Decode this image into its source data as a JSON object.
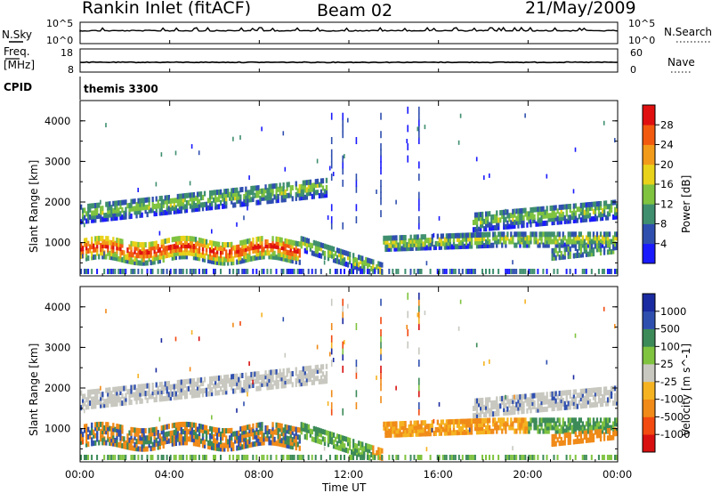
{
  "header": {
    "title": "Rankin Inlet (fitACF)",
    "beam": "Beam 02",
    "date": "21/May/2009"
  },
  "top_panels": {
    "nsky_label": "N.Sky",
    "nsky_ticks": [
      "10^5",
      "10^0"
    ],
    "nsearch_label": "N.Search",
    "nsearch_ticks": [
      "10^5",
      "10^0"
    ],
    "freq_label_1": "Freq.",
    "freq_label_2": "[MHz]",
    "freq_ticks": [
      "18",
      "8"
    ],
    "nave_label": "Nave",
    "nave_ticks": [
      "60",
      "0"
    ],
    "cpid_label": "CPID",
    "cpid_value": "themis 3300"
  },
  "xaxis": {
    "label": "Time UT",
    "ticks": [
      "00:00",
      "04:00",
      "08:00",
      "12:00",
      "16:00",
      "20:00",
      "00:00"
    ]
  },
  "colors": {
    "power": [
      "#1a1aff",
      "#2f4faf",
      "#3f8f6f",
      "#7fc33f",
      "#e8d21a",
      "#f29a1a",
      "#f25a10",
      "#e01010"
    ],
    "velocity": [
      "#d81010",
      "#f24a10",
      "#f08a18",
      "#f5b321",
      "#c8c8c0",
      "#7fc33f",
      "#3c8a58",
      "#2f4faf",
      "#1a2aa0"
    ]
  },
  "chart_data": [
    {
      "type": "heatmap",
      "title": "",
      "xlabel": "",
      "ylabel": "Slant Range [km]",
      "x_range": [
        "00:00",
        "24:00"
      ],
      "ylim": [
        180,
        4500
      ],
      "yticks": [
        "1000",
        "2000",
        "3000",
        "4000"
      ],
      "colorbar": {
        "label": "Power [dB]",
        "ticks": [
          "4",
          "8",
          "12",
          "16",
          "20",
          "24",
          "28"
        ],
        "range": [
          0,
          30
        ]
      },
      "echo_bands": [
        {
          "t_start": 0.0,
          "t_end": 9.8,
          "range_km": [
            600,
            1450
          ],
          "peak_db": 26
        },
        {
          "t_start": 9.8,
          "t_end": 13.5,
          "range_km": [
            200,
            1200
          ],
          "peak_db": 12
        },
        {
          "t_start": 13.5,
          "t_end": 18.5,
          "range_km": [
            950,
            1250
          ],
          "peak_db": 20
        },
        {
          "t_start": 0.0,
          "t_end": 11.0,
          "range_km": [
            1500,
            2500
          ],
          "peak_db": 18
        },
        {
          "t_start": 17.5,
          "t_end": 24.0,
          "range_km": [
            1400,
            2200
          ],
          "peak_db": 18
        },
        {
          "t_start": 21.0,
          "t_end": 24.0,
          "range_km": [
            700,
            1100
          ],
          "peak_db": 12
        }
      ]
    },
    {
      "type": "heatmap",
      "title": "",
      "xlabel": "Time UT",
      "ylabel": "Slant Range [km]",
      "x_range": [
        "00:00",
        "24:00"
      ],
      "ylim": [
        180,
        4500
      ],
      "yticks": [
        "1000",
        "2000",
        "3000",
        "4000"
      ],
      "colorbar": {
        "label": "Velocity [m s^-1]",
        "ticks": [
          "-1000",
          "-500",
          "-100",
          "-25",
          "25",
          "100",
          "500",
          "1000"
        ]
      },
      "ground_scatter_color": "#c8c8c0"
    }
  ]
}
